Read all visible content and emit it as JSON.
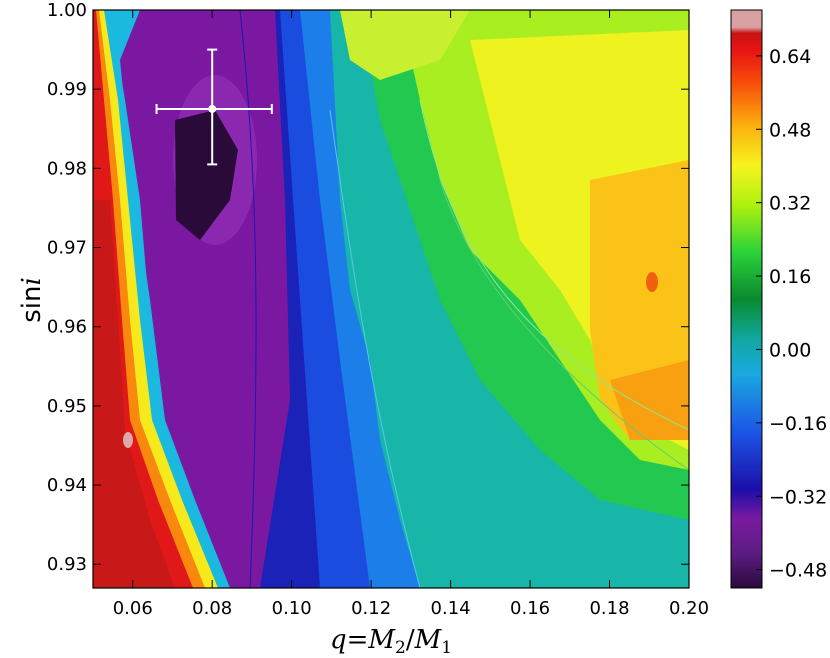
{
  "chart_data": {
    "type": "heatmap",
    "title": "",
    "xlabel": "q=M2/M1",
    "ylabel": "sin i",
    "x_ticks": [
      "0.06",
      "0.08",
      "0.10",
      "0.12",
      "0.14",
      "0.16",
      "0.18",
      "0.20"
    ],
    "y_ticks": [
      "0.93",
      "0.94",
      "0.95",
      "0.96",
      "0.97",
      "0.98",
      "0.99",
      "1.00"
    ],
    "xlim": [
      0.05,
      0.2
    ],
    "ylim": [
      0.927,
      1.0
    ],
    "colorbar": {
      "ticks": [
        "0.64",
        "0.48",
        "0.32",
        "0.16",
        "0.00",
        "−0.16",
        "−0.32",
        "−0.48"
      ],
      "range": [
        -0.52,
        0.74
      ],
      "colormap": "spectral"
    },
    "grid": false,
    "best_fit_point": {
      "q": 0.08,
      "sin_i": 0.9875,
      "q_err": [
        0.014,
        0.015
      ],
      "sin_i_err": [
        0.007,
        0.0075
      ]
    },
    "axes_color": "#000000",
    "marker_color": "#ffffff"
  }
}
